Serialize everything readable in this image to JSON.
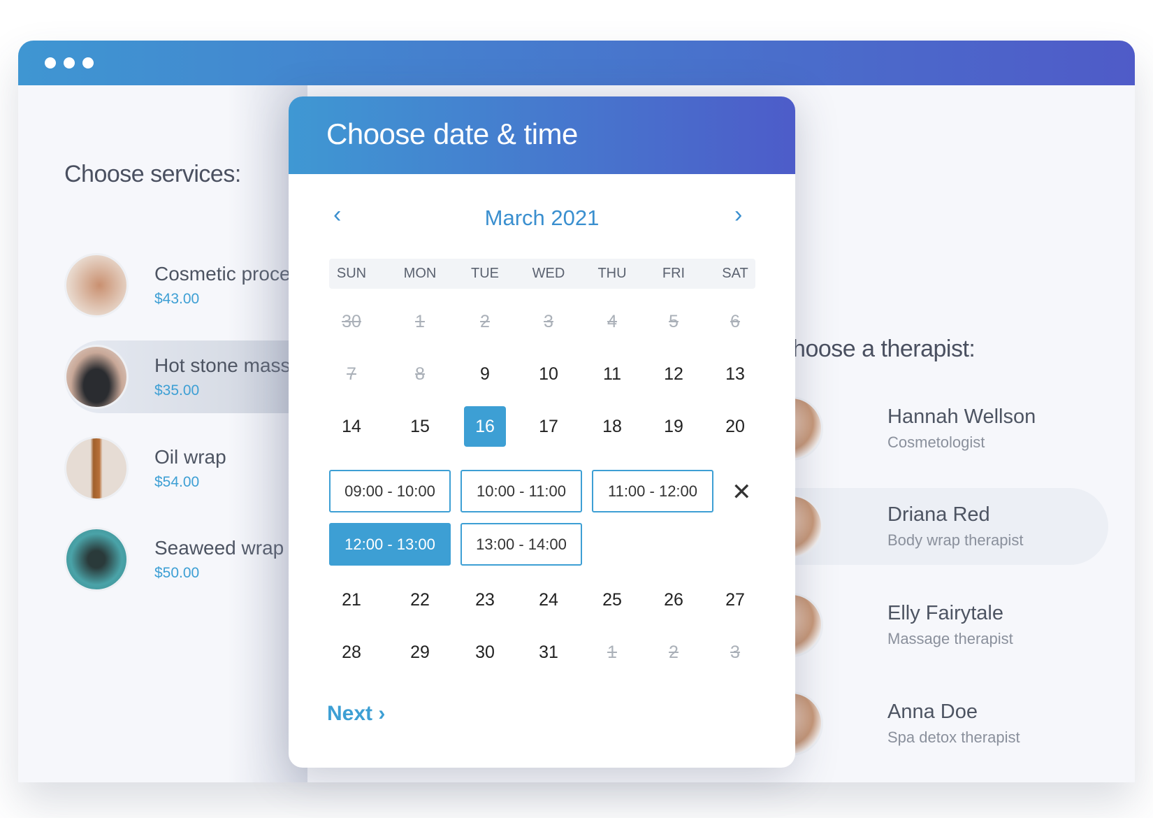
{
  "window": {
    "dots": 3
  },
  "services": {
    "heading": "Choose services:",
    "items": [
      {
        "name": "Cosmetic procedure",
        "price": "$43.00",
        "selected": false
      },
      {
        "name": "Hot stone massage",
        "price": "$35.00",
        "selected": true
      },
      {
        "name": "Oil wrap",
        "price": "$54.00",
        "selected": false
      },
      {
        "name": "Seaweed wrap",
        "price": "$50.00",
        "selected": false
      }
    ]
  },
  "therapists": {
    "heading": "Choose a therapist:",
    "items": [
      {
        "name": "Hannah Wellson",
        "role": "Cosmetologist",
        "selected": false
      },
      {
        "name": "Driana Red",
        "role": "Body wrap therapist",
        "selected": true
      },
      {
        "name": "Elly Fairytale",
        "role": "Massage therapist",
        "selected": false
      },
      {
        "name": "Anna Doe",
        "role": "Spa detox therapist",
        "selected": false
      }
    ]
  },
  "modal": {
    "title": "Choose date & time",
    "month": "March 2021",
    "prev_icon": "chevron-left",
    "next_icon": "chevron-right",
    "weekdays": [
      "SUN",
      "MON",
      "TUE",
      "WED",
      "THU",
      "FRI",
      "SAT"
    ],
    "weeks": [
      [
        "30",
        "1",
        "2",
        "3",
        "4",
        "5",
        "6"
      ],
      [
        "7",
        "8",
        "9",
        "10",
        "11",
        "12",
        "13"
      ],
      [
        "14",
        "15",
        "16",
        "17",
        "18",
        "19",
        "20"
      ],
      [
        "21",
        "22",
        "23",
        "24",
        "25",
        "26",
        "27"
      ],
      [
        "28",
        "29",
        "30",
        "31",
        "1",
        "2",
        "3"
      ]
    ],
    "disabled": [
      [
        0,
        0
      ],
      [
        0,
        1
      ],
      [
        0,
        2
      ],
      [
        0,
        3
      ],
      [
        0,
        4
      ],
      [
        0,
        5
      ],
      [
        0,
        6
      ],
      [
        1,
        0
      ],
      [
        1,
        1
      ],
      [
        4,
        4
      ],
      [
        4,
        5
      ],
      [
        4,
        6
      ]
    ],
    "selected_day": "16",
    "slots": [
      {
        "label": "09:00 - 10:00",
        "selected": false
      },
      {
        "label": "10:00 - 11:00",
        "selected": false
      },
      {
        "label": "11:00 - 12:00",
        "selected": false
      },
      {
        "label": "12:00 - 13:00",
        "selected": true
      },
      {
        "label": "13:00 - 14:00",
        "selected": false
      }
    ],
    "close_icon": "close",
    "next_label": "Next"
  },
  "colors": {
    "accent": "#3d9fd4",
    "header_from": "#3f98d3",
    "header_to": "#4d5cc9"
  }
}
